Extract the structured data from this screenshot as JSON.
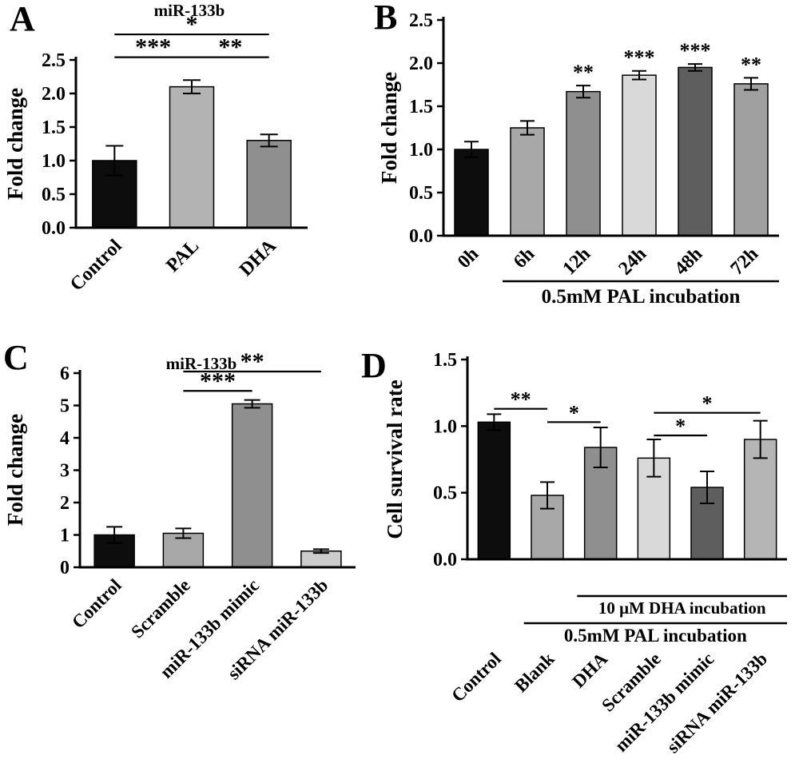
{
  "figure": {
    "background": "#ffffff",
    "text_color": "#000000"
  },
  "panel_labels": {
    "a": "A",
    "b": "B",
    "c": "C",
    "d": "D"
  },
  "chart_data": [
    {
      "panel": "A",
      "type": "bar",
      "title": "miR-133b",
      "xlabel": "",
      "ylabel": "Fold change",
      "ylim": [
        0,
        2.5
      ],
      "yticks": [
        0,
        0.5,
        1,
        1.5,
        2,
        2.5
      ],
      "ytick_decimals": 1,
      "categories": [
        "Control",
        "PAL",
        "DHA"
      ],
      "values": [
        1.0,
        2.1,
        1.3
      ],
      "errors": [
        0.22,
        0.1,
        0.09
      ],
      "bar_colors": [
        "#0d0d0d",
        "#b3b3b3",
        "#8f8f8f"
      ],
      "significance": [
        {
          "from": 0,
          "to": 1,
          "label": "***",
          "y": 2.54
        },
        {
          "from": 1,
          "to": 2,
          "label": "**",
          "y": 2.54
        },
        {
          "from": 0,
          "to": 2,
          "label": "*",
          "y": 2.88
        }
      ]
    },
    {
      "panel": "B",
      "type": "bar",
      "title": "",
      "xlabel": "",
      "ylabel": "Fold change",
      "ylim": [
        0,
        2.5
      ],
      "yticks": [
        0,
        0.5,
        1,
        1.5,
        2,
        2.5
      ],
      "ytick_decimals": 1,
      "categories": [
        "0h",
        "6h",
        "12h",
        "24h",
        "48h",
        "72h"
      ],
      "values": [
        1.0,
        1.25,
        1.67,
        1.86,
        1.95,
        1.76
      ],
      "errors": [
        0.09,
        0.08,
        0.07,
        0.05,
        0.04,
        0.07
      ],
      "bar_labels": [
        "",
        "",
        "**",
        "***",
        "***",
        "**"
      ],
      "bar_colors": [
        "#0d0d0d",
        "#a8a8a8",
        "#8f8f8f",
        "#d9d9d9",
        "#5e5e5e",
        "#a0a0a0"
      ],
      "group_lines": [
        {
          "from": 1,
          "to": 5,
          "text": "0.5mM PAL incubation"
        }
      ]
    },
    {
      "panel": "C",
      "type": "bar",
      "title": "miR-133b",
      "xlabel": "",
      "ylabel": "Fold change",
      "ylim": [
        0,
        6
      ],
      "yticks": [
        0,
        1,
        2,
        3,
        4,
        5,
        6
      ],
      "ytick_decimals": 0,
      "categories": [
        "Control",
        "Scramble",
        "miR-133b mimic",
        "siRNA miR-133b"
      ],
      "values": [
        1.0,
        1.05,
        5.05,
        0.5
      ],
      "errors": [
        0.25,
        0.15,
        0.12,
        0.06
      ],
      "bar_colors": [
        "#0d0d0d",
        "#a8a8a8",
        "#8f8f8f",
        "#cccccc"
      ],
      "significance": [
        {
          "from": 1,
          "to": 2,
          "label": "***",
          "y": 5.45
        },
        {
          "from": 1,
          "to": 3,
          "label": "**",
          "y": 6.05
        }
      ]
    },
    {
      "panel": "D",
      "type": "bar",
      "title": "",
      "xlabel": "",
      "ylabel": "Cell survival rate",
      "ylim": [
        0,
        1.5
      ],
      "yticks": [
        0,
        0.5,
        1,
        1.5
      ],
      "ytick_decimals": 1,
      "categories": [
        "Control",
        "Blank",
        "DHA",
        "Scramble",
        "miR-133b mimic",
        "siRNA miR-133b"
      ],
      "values": [
        1.03,
        0.48,
        0.84,
        0.76,
        0.54,
        0.9
      ],
      "errors": [
        0.06,
        0.1,
        0.15,
        0.14,
        0.12,
        0.14
      ],
      "bar_colors": [
        "#0d0d0d",
        "#a8a8a8",
        "#8f8f8f",
        "#d9d9d9",
        "#5e5e5e",
        "#b5b5b5"
      ],
      "significance": [
        {
          "from": 0,
          "to": 1,
          "label": "**",
          "y": 1.13
        },
        {
          "from": 1,
          "to": 2,
          "label": "*",
          "y": 1.03
        },
        {
          "from": 3,
          "to": 4,
          "label": "*",
          "y": 0.93
        },
        {
          "from": 3,
          "to": 5,
          "label": "*",
          "y": 1.1
        }
      ],
      "group_lines": [
        {
          "from": 2,
          "to": 5,
          "text": "10 μM DHA incubation"
        },
        {
          "from": 1,
          "to": 5,
          "text": "0.5mM PAL incubation"
        }
      ]
    }
  ]
}
